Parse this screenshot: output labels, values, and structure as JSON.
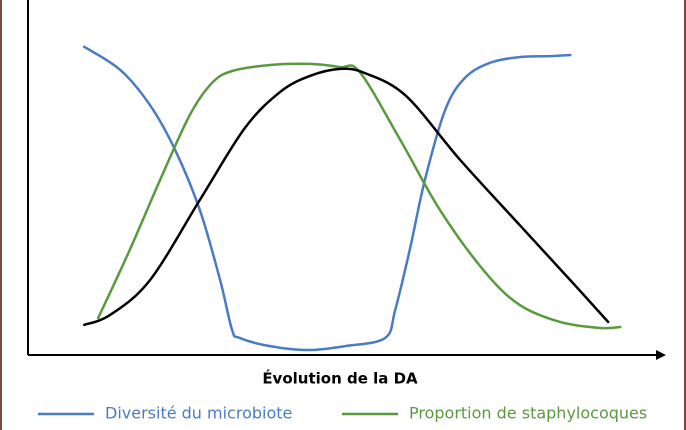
{
  "chart_data": {
    "type": "line",
    "xlabel": "Évolution de la DA",
    "xlim": [
      0,
      100
    ],
    "ylim": [
      0,
      100
    ],
    "series": [
      {
        "name": "Diversité du microbiote",
        "color": "#4a7cc4",
        "x": [
          8.9,
          14.6,
          19.3,
          23.3,
          27.2,
          30.4,
          32.3,
          33.5,
          38.3,
          44.3,
          50.2,
          56.5,
          58.1,
          60.4,
          62.8,
          66.0,
          69.1,
          73.1,
          77.8,
          82.6,
          85.8
        ],
        "values": [
          86.8,
          80.3,
          70.4,
          57.7,
          40.8,
          21.1,
          7.0,
          4.8,
          2.5,
          1.4,
          2.5,
          4.8,
          12.7,
          29.6,
          49.3,
          69.0,
          78.0,
          82.3,
          83.9,
          84.2,
          84.5
        ]
      },
      {
        "name": "Proportion de staphylocoques",
        "color": "#5a9a3e",
        "x": [
          11.1,
          16.1,
          20.9,
          25.6,
          29.1,
          32.3,
          38.3,
          44.6,
          49.4,
          52.5,
          58.9,
          65.2,
          72.3,
          77.8,
          84.2,
          90.5,
          93.7
        ],
        "values": [
          10.4,
          29.6,
          49.3,
          67.6,
          76.6,
          80.0,
          81.7,
          82.0,
          81.1,
          79.7,
          60.6,
          40.8,
          23.4,
          14.1,
          9.3,
          7.6,
          7.9
        ]
      },
      {
        "color": "#000000",
        "x": [
          8.9,
          13.0,
          19.3,
          27.2,
          34.3,
          39.9,
          44.6,
          49.4,
          53.3,
          59.8,
          68.4,
          77.8,
          85.8,
          91.8
        ],
        "values": [
          8.5,
          11.3,
          21.1,
          43.7,
          63.9,
          74.1,
          78.6,
          80.6,
          79.4,
          73.0,
          54.9,
          36.6,
          21.1,
          9.3
        ]
      }
    ]
  }
}
